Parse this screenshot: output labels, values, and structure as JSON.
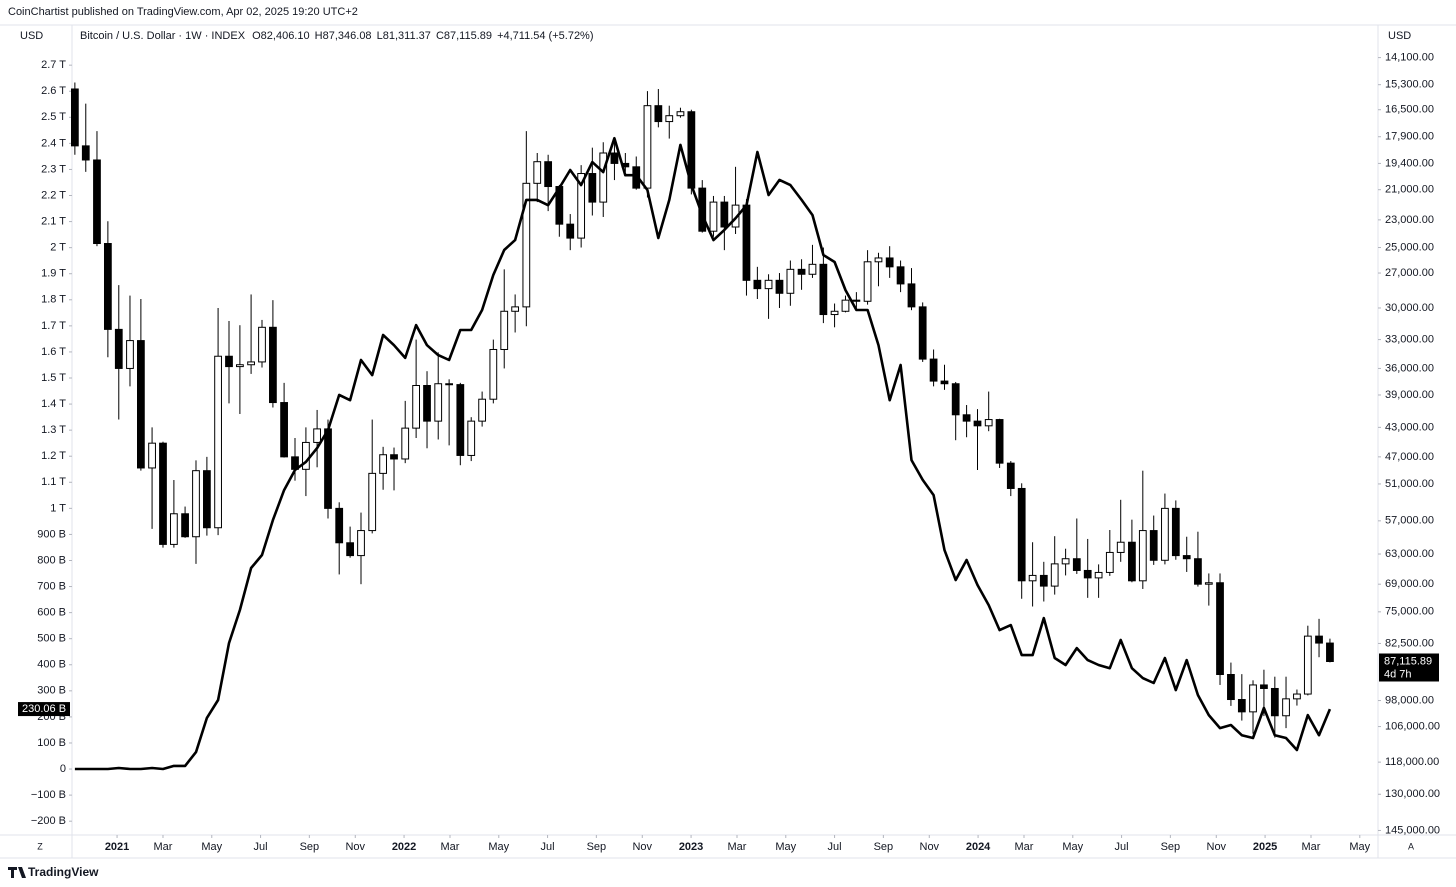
{
  "header": {
    "publisher": "CoinChartist published on TradingView.com, Apr 02, 2025 19:20 UTC+2",
    "symbol": "Bitcoin / U.S. Dollar · 1W · INDEX",
    "open": "O82,406.10",
    "high": "H87,346.08",
    "low": "L81,311.37",
    "close": "C87,115.89",
    "change": "+4,711.54 (+5.72%)",
    "left_currency": "USD",
    "right_currency": "USD"
  },
  "footer": {
    "logo": "TradingView",
    "left_button": "Z",
    "right_button": "A"
  },
  "chart_data": {
    "type": "candlestick",
    "x": [
      2020.853,
      2020.891,
      2020.93,
      2020.968,
      2021.006,
      2021.045,
      2021.083,
      2021.122,
      2021.16,
      2021.198,
      2021.237,
      2021.275,
      2021.313,
      2021.352,
      2021.39,
      2021.428,
      2021.467,
      2021.505,
      2021.543,
      2021.582,
      2021.62,
      2021.658,
      2021.697,
      2021.735,
      2021.774,
      2021.812,
      2021.85,
      2021.889,
      2021.927,
      2021.965,
      2022.004,
      2022.042,
      2022.08,
      2022.119,
      2022.157,
      2022.196,
      2022.234,
      2022.272,
      2022.311,
      2022.349,
      2022.387,
      2022.426,
      2022.464,
      2022.502,
      2022.541,
      2022.579,
      2022.617,
      2022.656,
      2022.694,
      2022.733,
      2022.771,
      2022.809,
      2022.848,
      2022.886,
      2022.924,
      2022.963,
      2023.001,
      2023.039,
      2023.078,
      2023.116,
      2023.155,
      2023.193,
      2023.231,
      2023.27,
      2023.308,
      2023.346,
      2023.385,
      2023.423,
      2023.461,
      2023.5,
      2023.538,
      2023.576,
      2023.615,
      2023.653,
      2023.692,
      2023.73,
      2023.768,
      2023.807,
      2023.845,
      2023.883,
      2023.922,
      2023.96,
      2023.998,
      2024.037,
      2024.075,
      2024.114,
      2024.152,
      2024.19,
      2024.229,
      2024.267,
      2024.305,
      2024.344,
      2024.382,
      2024.42,
      2024.459,
      2024.497,
      2024.536,
      2024.574,
      2024.612,
      2024.651,
      2024.689,
      2024.727,
      2024.766,
      2024.804,
      2024.843,
      2024.881,
      2024.919,
      2024.958,
      2024.996,
      2025.034,
      2025.073,
      2025.111,
      2025.149,
      2025.188,
      2025.226
    ],
    "xlim": [
      2020.843,
      2025.383
    ],
    "xticks": [
      2021,
      {
        "value": 2021.16,
        "label": "Mar"
      },
      {
        "value": 2021.33,
        "label": "May"
      },
      {
        "value": 2021.5,
        "label": "Jul"
      },
      {
        "value": 2021.67,
        "label": "Sep"
      },
      {
        "value": 2021.83,
        "label": "Nov"
      },
      2022,
      {
        "value": 2022.16,
        "label": "Mar"
      },
      {
        "value": 2022.33,
        "label": "May"
      },
      {
        "value": 2022.5,
        "label": "Jul"
      },
      {
        "value": 2022.67,
        "label": "Sep"
      },
      {
        "value": 2022.83,
        "label": "Nov"
      },
      2023,
      {
        "value": 2023.16,
        "label": "Mar"
      },
      {
        "value": 2023.33,
        "label": "May"
      },
      {
        "value": 2023.5,
        "label": "Jul"
      },
      {
        "value": 2023.67,
        "label": "Sep"
      },
      {
        "value": 2023.83,
        "label": "Nov"
      },
      2024,
      {
        "value": 2024.16,
        "label": "Mar"
      },
      {
        "value": 2024.33,
        "label": "May"
      },
      {
        "value": 2024.5,
        "label": "Jul"
      },
      {
        "value": 2024.67,
        "label": "Sep"
      },
      {
        "value": 2024.83,
        "label": "Nov"
      },
      2025,
      {
        "value": 2025.16,
        "label": "Mar"
      },
      {
        "value": 2025.33,
        "label": "May"
      }
    ],
    "ylim": [
      -253,
      2739
    ],
    "yticks": [
      {
        "value": 2700,
        "label": "2.7 T"
      },
      {
        "value": 2600,
        "label": "2.6 T"
      },
      {
        "value": 2500,
        "label": "2.5 T"
      },
      {
        "value": 2400,
        "label": "2.4 T"
      },
      {
        "value": 2300,
        "label": "2.3 T"
      },
      {
        "value": 2200,
        "label": "2.2 T"
      },
      {
        "value": 2100,
        "label": "2.1 T"
      },
      {
        "value": 2000,
        "label": "2 T"
      },
      {
        "value": 1900,
        "label": "1.9 T"
      },
      {
        "value": 1800,
        "label": "1.8 T"
      },
      {
        "value": 1700,
        "label": "1.7 T"
      },
      {
        "value": 1600,
        "label": "1.6 T"
      },
      {
        "value": 1500,
        "label": "1.5 T"
      },
      {
        "value": 1400,
        "label": "1.4 T"
      },
      {
        "value": 1300,
        "label": "1.3 T"
      },
      {
        "value": 1200,
        "label": "1.2 T"
      },
      {
        "value": 1100,
        "label": "1.1 T"
      },
      {
        "value": 1000,
        "label": "1 T"
      },
      {
        "value": 900,
        "label": "900 B"
      },
      {
        "value": 800,
        "label": "800 B"
      },
      {
        "value": 700,
        "label": "700 B"
      },
      {
        "value": 600,
        "label": "600 B"
      },
      {
        "value": 500,
        "label": "500 B"
      },
      {
        "value": 400,
        "label": "400 B"
      },
      {
        "value": 300,
        "label": "300 B"
      },
      {
        "value": 200,
        "label": "200 B"
      },
      {
        "value": 100,
        "label": "100 B"
      },
      0,
      {
        "value": -100,
        "label": "−100 B"
      },
      {
        "value": -200,
        "label": "−200 B"
      }
    ],
    "y2lim": [
      13990,
      147000
    ],
    "y2_log": true,
    "y2_inverted": true,
    "y2ticks": [
      {
        "value": 14100,
        "label": "14,100.00"
      },
      {
        "value": 15300,
        "label": "15,300.00"
      },
      {
        "value": 16500,
        "label": "16,500.00"
      },
      {
        "value": 17900,
        "label": "17,900.00"
      },
      {
        "value": 19400,
        "label": "19,400.00"
      },
      {
        "value": 21000,
        "label": "21,000.00"
      },
      {
        "value": 23000,
        "label": "23,000.00"
      },
      {
        "value": 25000,
        "label": "25,000.00"
      },
      {
        "value": 27000,
        "label": "27,000.00"
      },
      {
        "value": 30000,
        "label": "30,000.00"
      },
      {
        "value": 33000,
        "label": "33,000.00"
      },
      {
        "value": 36000,
        "label": "36,000.00"
      },
      {
        "value": 39000,
        "label": "39,000.00"
      },
      {
        "value": 43000,
        "label": "43,000.00"
      },
      {
        "value": 47000,
        "label": "47,000.00"
      },
      {
        "value": 51000,
        "label": "51,000.00"
      },
      {
        "value": 57000,
        "label": "57,000.00"
      },
      {
        "value": 63000,
        "label": "63,000.00"
      },
      {
        "value": 69000,
        "label": "69,000.00"
      },
      {
        "value": 75000,
        "label": "75,000.00"
      },
      {
        "value": 82500,
        "label": "82,500.00"
      },
      {
        "value": 98000,
        "label": "98,000.00"
      },
      {
        "value": 106000,
        "label": "106,000.00"
      },
      {
        "value": 118000,
        "label": "118,000.00"
      },
      {
        "value": 130000,
        "label": "130,000.00"
      },
      {
        "value": 145000,
        "label": "145,000.00"
      }
    ],
    "series": [
      {
        "type": "candlestick",
        "axis": "y2",
        "up_color": "#000000",
        "down_color": "#ffffff",
        "border_color": "#000000",
        "open": [
          15500,
          18400,
          19200,
          24700,
          32000,
          36000,
          33100,
          48600,
          45100,
          61200,
          55800,
          59800,
          49000,
          58200,
          34700,
          35800,
          35600,
          35300,
          31800,
          39900,
          47000,
          48800,
          45000,
          43200,
          54900,
          60900,
          63300,
          58700,
          49400,
          46700,
          47300,
          43100,
          37900,
          42200,
          37700,
          37800,
          46800,
          42200,
          39500,
          34000,
          30300,
          29900,
          20600,
          19300,
          20800,
          23300,
          24300,
          20000,
          21800,
          18800,
          19400,
          19600,
          20900,
          16300,
          17100,
          16800,
          16600,
          20900,
          23800,
          21800,
          23500,
          22000,
          27600,
          28300,
          27600,
          28700,
          26700,
          27100,
          26300,
          30600,
          30300,
          29300,
          29400,
          26100,
          25800,
          26500,
          27900,
          29900,
          35000,
          37400,
          37700,
          41400,
          42200,
          42800,
          42000,
          47900,
          51700,
          68300,
          67200,
          69400,
          64900,
          63900,
          66200,
          67700,
          66600,
          62700,
          60800,
          68300,
          58700,
          64200,
          54900,
          63300,
          63900,
          69000,
          68700,
          90600,
          97700,
          101400,
          93500,
          94500,
          102600,
          97500,
          96100,
          80700,
          82406.1
        ],
        "high": [
          18900,
          19900,
          24900,
          34800,
          42000,
          38000,
          49000,
          58400,
          61800,
          61800,
          60000,
          64900,
          59600,
          59500,
          40000,
          41300,
          36600,
          35900,
          40500,
          47100,
          50500,
          52900,
          48500,
          56600,
          67000,
          63700,
          69000,
          59200,
          51900,
          52000,
          47900,
          44400,
          45800,
          44600,
          45400,
          48200,
          47600,
          42900,
          40000,
          36000,
          32300,
          31700,
          21800,
          22400,
          24200,
          25200,
          25000,
          22700,
          22800,
          20400,
          19900,
          21000,
          21500,
          17400,
          18000,
          16900,
          21300,
          23900,
          24200,
          25200,
          24000,
          28900,
          29200,
          31000,
          30000,
          29800,
          28400,
          27400,
          31400,
          31800,
          30400,
          30200,
          29700,
          28100,
          27400,
          28600,
          30200,
          35300,
          38000,
          38400,
          44700,
          44300,
          48900,
          43500,
          48600,
          52900,
          72100,
          73800,
          72700,
          71200,
          67200,
          66900,
          71900,
          71900,
          67300,
          64500,
          68600,
          70000,
          65100,
          65000,
          64100,
          66500,
          69500,
          73600,
          93500,
          99600,
          104100,
          108300,
          102700,
          109600,
          106500,
          99500,
          96500,
          86000,
          87346.08
        ],
        "low": [
          15200,
          16200,
          17600,
          23100,
          28000,
          28900,
          29200,
          43000,
          44900,
          50400,
          54600,
          47500,
          47000,
          30000,
          31200,
          31600,
          28800,
          31100,
          29300,
          37600,
          44400,
          43000,
          40800,
          42000,
          53900,
          58000,
          55600,
          42000,
          45600,
          45700,
          39700,
          33000,
          36300,
          34300,
          37200,
          37600,
          41700,
          38600,
          33000,
          26700,
          28800,
          17600,
          18800,
          18900,
          20700,
          22600,
          19500,
          18500,
          18200,
          18200,
          18800,
          19000,
          15600,
          15500,
          16300,
          16400,
          16500,
          20400,
          21400,
          21400,
          19600,
          21600,
          26500,
          27100,
          27000,
          26000,
          25900,
          24800,
          25000,
          29600,
          28900,
          28600,
          25200,
          25400,
          24900,
          26000,
          26600,
          29500,
          34000,
          35600,
          37500,
          40200,
          40700,
          38600,
          41900,
          47600,
          50900,
          60800,
          64500,
          59700,
          62000,
          56600,
          60200,
          65000,
          58600,
          53500,
          56800,
          49000,
          56100,
          52500,
          53600,
          59800,
          58900,
          66800,
          66800,
          87400,
          90500,
          92200,
          89300,
          91200,
          91200,
          94800,
          78200,
          76600,
          81311.37
        ],
        "close": [
          18400,
          19200,
          24700,
          32000,
          36000,
          33100,
          48600,
          45100,
          61200,
          55800,
          59800,
          49000,
          58200,
          34700,
          35800,
          35600,
          35300,
          31800,
          39900,
          47000,
          48800,
          45000,
          43200,
          54900,
          60900,
          63300,
          58700,
          49400,
          46700,
          47300,
          43100,
          37900,
          42200,
          37700,
          37800,
          46800,
          42200,
          39500,
          34000,
          30300,
          29900,
          20600,
          19300,
          20800,
          23300,
          24300,
          20000,
          21800,
          18800,
          19400,
          19600,
          20900,
          16300,
          17100,
          16800,
          16600,
          20900,
          23800,
          21800,
          23500,
          22000,
          27600,
          28300,
          27600,
          28700,
          26700,
          27100,
          26300,
          30600,
          30300,
          29300,
          29400,
          26100,
          25800,
          26500,
          27900,
          29900,
          35000,
          37400,
          37700,
          41400,
          42200,
          42800,
          42000,
          47900,
          51700,
          68300,
          67200,
          69400,
          64900,
          63900,
          66200,
          67700,
          66600,
          62700,
          60800,
          68300,
          58700,
          64200,
          54900,
          63300,
          63900,
          69000,
          68700,
          90600,
          97700,
          101400,
          93500,
          94500,
          102600,
          97500,
          96100,
          80700,
          82406.1,
          87115.89
        ],
        "last_label": "87,115.89",
        "countdown": "4d 7h"
      },
      {
        "type": "line",
        "axis": "y",
        "color": "#000000",
        "values": [
          0,
          0,
          0,
          0,
          4,
          0,
          0,
          4,
          0,
          12,
          12,
          65,
          196,
          265,
          483,
          610,
          771,
          821,
          955,
          1070,
          1147,
          1178,
          1231,
          1300,
          1435,
          1415,
          1569,
          1511,
          1665,
          1626,
          1577,
          1703,
          1626,
          1588,
          1569,
          1684,
          1684,
          1761,
          1895,
          1991,
          2029,
          2183,
          2183,
          2163,
          2229,
          2298,
          2240,
          2328,
          2290,
          2420,
          2278,
          2278,
          2221,
          2037,
          2183,
          2394,
          2240,
          2125,
          2029,
          2068,
          2113,
          2163,
          2367,
          2202,
          2260,
          2240,
          2183,
          2125,
          1972,
          1945,
          1837,
          1761,
          1761,
          1626,
          1415,
          1550,
          1185,
          1109,
          1051,
          840,
          725,
          802,
          706,
          629,
          533,
          552,
          437,
          437,
          579,
          426,
          399,
          464,
          418,
          399,
          387,
          495,
          387,
          349,
          330,
          426,
          303,
          418,
          284,
          207,
          157,
          169,
          130,
          119,
          234,
          130,
          119,
          73,
          207,
          130,
          230.06
        ],
        "last_label": "230.06 B"
      }
    ]
  }
}
